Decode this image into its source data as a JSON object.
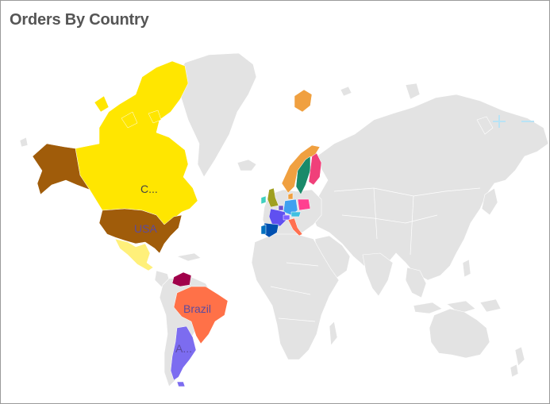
{
  "widget": {
    "title": "Orders By Country"
  },
  "map": {
    "base_color": "#e3e3e3",
    "border_color": "#ffffff",
    "regions": [
      {
        "name": "Canada",
        "label": "C...",
        "color": "#ffe600",
        "label_color": "#444444"
      },
      {
        "name": "USA",
        "label": "USA",
        "color": "#a05c0a",
        "label_color": "#5b4aa0"
      },
      {
        "name": "Mexico",
        "label": "",
        "color": "#fff07a",
        "label_color": "#444444"
      },
      {
        "name": "Brazil",
        "label": "Brazil",
        "color": "#ff7148",
        "label_color": "#5b4aa0"
      },
      {
        "name": "Argentina",
        "label": "A...",
        "color": "#7c6cf0",
        "label_color": "#5b4aa0"
      },
      {
        "name": "Venezuela",
        "label": "",
        "color": "#a0004a",
        "label_color": "#444444"
      },
      {
        "name": "Sweden",
        "label": "",
        "color": "#1a8a6a",
        "label_color": "#444444"
      },
      {
        "name": "Norway",
        "label": "",
        "color": "#f0a040",
        "label_color": "#444444"
      },
      {
        "name": "Finland",
        "label": "",
        "color": "#f0407a",
        "label_color": "#444444"
      },
      {
        "name": "UK",
        "label": "",
        "color": "#a0a020",
        "label_color": "#444444"
      },
      {
        "name": "Ireland",
        "label": "",
        "color": "#40d0c0",
        "label_color": "#444444"
      },
      {
        "name": "France",
        "label": "",
        "color": "#6050f0",
        "label_color": "#444444"
      },
      {
        "name": "Germany",
        "label": "",
        "color": "#40a0f0",
        "label_color": "#444444"
      },
      {
        "name": "Poland",
        "label": "",
        "color": "#ff4090",
        "label_color": "#444444"
      },
      {
        "name": "Spain",
        "label": "",
        "color": "#0050b0",
        "label_color": "#444444"
      },
      {
        "name": "Portugal",
        "label": "",
        "color": "#0070c0",
        "label_color": "#444444"
      },
      {
        "name": "Italy",
        "label": "",
        "color": "#ff7050",
        "label_color": "#444444"
      },
      {
        "name": "Switzerland",
        "label": "",
        "color": "#8060ff",
        "label_color": "#444444"
      },
      {
        "name": "Austria",
        "label": "",
        "color": "#40c0e0",
        "label_color": "#444444"
      },
      {
        "name": "Belgium",
        "label": "",
        "color": "#7050d0",
        "label_color": "#444444"
      },
      {
        "name": "Denmark",
        "label": "",
        "color": "#f0a040",
        "label_color": "#444444"
      }
    ]
  },
  "controls": {
    "zoom_in_icon": "plus-icon",
    "zoom_out_icon": "minus-icon",
    "icon_color": "#b9e3f5"
  }
}
